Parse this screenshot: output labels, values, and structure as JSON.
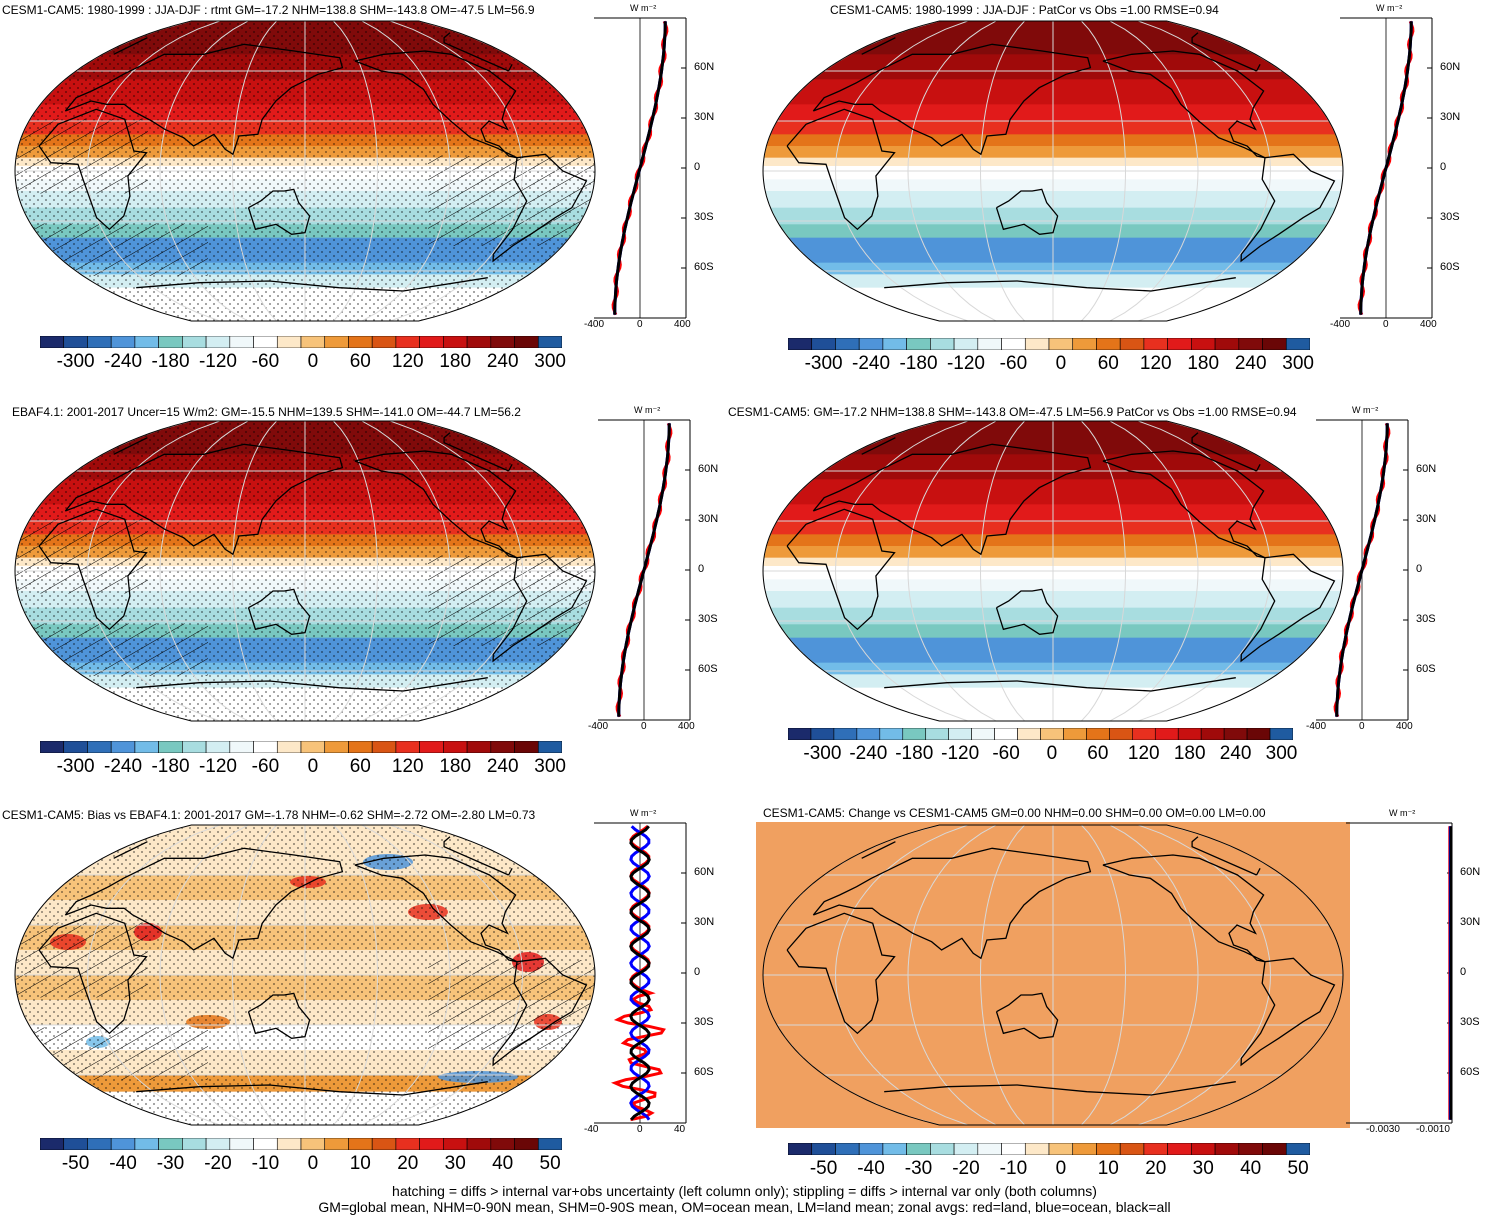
{
  "panels": [
    {
      "id": "p1",
      "title": "CESM1-CAM5: 1980-1999 : JJA-DJF : rtmt GM=-17.2 NHM=138.8 SHM=-143.8 OM=-47.5 LM=56.9",
      "type": "absolute",
      "hatching": true,
      "stipple": true,
      "zonal_ticks_x": [
        "-400",
        "0",
        "400"
      ],
      "zonal_ticks_y": [
        "60N",
        "30N",
        "0",
        "30S",
        "60S"
      ],
      "zonal_unit": "W m⁻²",
      "colorbar_labels": [
        "-300",
        "-240",
        "-180",
        "-120",
        "-60",
        "0",
        "60",
        "120",
        "180",
        "240",
        "300"
      ]
    },
    {
      "id": "p2",
      "title": "CESM1-CAM5: 1980-1999 : JJA-DJF : PatCor vs Obs =1.00 RMSE=0.94",
      "type": "absolute",
      "hatching": false,
      "stipple": false,
      "zonal_ticks_x": [
        "-400",
        "0",
        "400"
      ],
      "zonal_ticks_y": [
        "60N",
        "30N",
        "0",
        "30S",
        "60S"
      ],
      "zonal_unit": "W m⁻²",
      "colorbar_labels": [
        "-300",
        "-240",
        "-180",
        "-120",
        "-60",
        "0",
        "60",
        "120",
        "180",
        "240",
        "300"
      ]
    },
    {
      "id": "p3",
      "title": "EBAF4.1: 2001-2017 Uncer=15 W/m2: GM=-15.5 NHM=139.5 SHM=-141.0 OM=-44.7 LM=56.2",
      "type": "absolute",
      "hatching": true,
      "stipple": true,
      "zonal_ticks_x": [
        "-400",
        "0",
        "400"
      ],
      "zonal_ticks_y": [
        "60N",
        "30N",
        "0",
        "30S",
        "60S"
      ],
      "zonal_unit": "W m⁻²",
      "colorbar_labels": [
        "-300",
        "-240",
        "-180",
        "-120",
        "-60",
        "0",
        "60",
        "120",
        "180",
        "240",
        "300"
      ]
    },
    {
      "id": "p4",
      "title": "CESM1-CAM5: GM=-17.2 NHM=138.8 SHM=-143.8 OM=-47.5 LM=56.9 PatCor vs Obs =1.00 RMSE=0.94",
      "type": "absolute",
      "hatching": false,
      "stipple": false,
      "zonal_ticks_x": [
        "-400",
        "0",
        "400"
      ],
      "zonal_ticks_y": [
        "60N",
        "30N",
        "0",
        "30S",
        "60S"
      ],
      "zonal_unit": "W m⁻²",
      "colorbar_labels": [
        "-300",
        "-240",
        "-180",
        "-120",
        "-60",
        "0",
        "60",
        "120",
        "180",
        "240",
        "300"
      ]
    },
    {
      "id": "p5",
      "title": "CESM1-CAM5: Bias vs EBAF4.1: 2001-2017 GM=-1.78 NHM=-0.62 SHM=-2.72 OM=-2.80 LM=0.73",
      "type": "bias",
      "hatching": true,
      "stipple": true,
      "zonal_ticks_x": [
        "-40",
        "0",
        "40"
      ],
      "zonal_ticks_y": [
        "60N",
        "30N",
        "0",
        "30S",
        "60S"
      ],
      "zonal_unit": "W m⁻²",
      "colorbar_labels": [
        "-50",
        "-40",
        "-30",
        "-20",
        "-10",
        "0",
        "10",
        "20",
        "30",
        "40",
        "50"
      ]
    },
    {
      "id": "p6",
      "title": "CESM1-CAM5: Change vs CESM1-CAM5 GM=0.00 NHM=0.00 SHM=0.00 OM=0.00 LM=0.00",
      "type": "flat",
      "hatching": false,
      "stipple": false,
      "zonal_ticks_x": [
        "-0.0030",
        "-0.0010"
      ],
      "zonal_ticks_y": [
        "60N",
        "30N",
        "0",
        "30S",
        "60S"
      ],
      "zonal_unit": "W m⁻²",
      "colorbar_labels": [
        "-50",
        "-40",
        "-30",
        "-20",
        "-10",
        "0",
        "10",
        "20",
        "30",
        "40",
        "50"
      ]
    }
  ],
  "colors": {
    "levels": [
      "#1b2a6b",
      "#1f4f98",
      "#2f6fb8",
      "#4f94d9",
      "#72bce8",
      "#79c8c0",
      "#a8dde0",
      "#d3eef2",
      "#f0f8fa",
      "#ffffff",
      "#fde8c8",
      "#f7c37a",
      "#ee9a3a",
      "#e47419",
      "#d95514",
      "#e8301f",
      "#e11a1a",
      "#c81010",
      "#a00a0a",
      "#800a0a",
      "#6a0606",
      "#1f5ba0"
    ],
    "flat_fill": "#f0a060",
    "land_line": "red",
    "ocean_line": "blue",
    "all_line": "black"
  },
  "footnote": {
    "line1": "hatching = diffs > internal var+obs uncertainty (left column only); stippling = diffs > internal var only (both columns)",
    "line2": "GM=global mean, NHM=0-90N mean, SHM=0-90S mean, OM=ocean mean, LM=land mean; zonal avgs: red=land, blue=ocean, black=all"
  }
}
